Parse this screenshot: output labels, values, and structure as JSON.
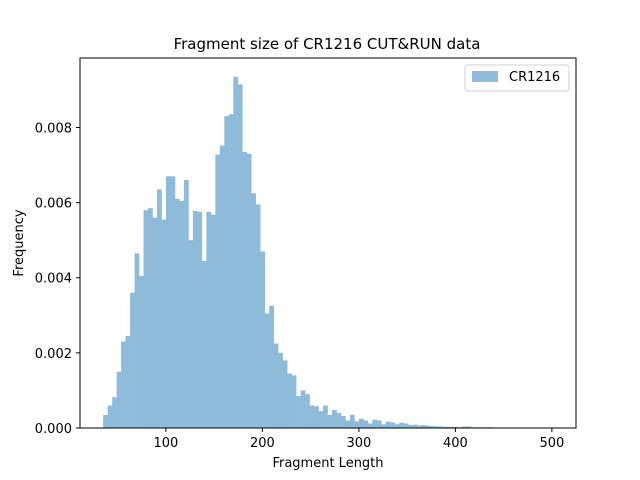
{
  "chart_data": {
    "type": "bar",
    "title": "Fragment size of CR1216 CUT&RUN data",
    "xlabel": "Fragment Length",
    "ylabel": "Frequency",
    "xlim": [
      11,
      525
    ],
    "ylim": [
      0,
      0.00985
    ],
    "xticks": [
      100,
      200,
      300,
      400,
      500
    ],
    "xtick_labels": [
      "100",
      "200",
      "300",
      "400",
      "500"
    ],
    "yticks": [
      0,
      0.002,
      0.004,
      0.006,
      0.008
    ],
    "ytick_labels": [
      "0.000",
      "0.002",
      "0.004",
      "0.006",
      "0.008"
    ],
    "grid": false,
    "legend_position": "top-right",
    "bin_start": 35,
    "bin_width": 4.65,
    "series": [
      {
        "name": "CR1216",
        "color": "#8fbbda",
        "values": [
          0.00035,
          0.0006,
          0.00082,
          0.0015,
          0.0023,
          0.00245,
          0.0036,
          0.00465,
          0.00405,
          0.0058,
          0.00585,
          0.0056,
          0.00635,
          0.00555,
          0.0067,
          0.0067,
          0.0061,
          0.00605,
          0.0066,
          0.005,
          0.00578,
          0.00575,
          0.00445,
          0.00575,
          0.00568,
          0.00728,
          0.00752,
          0.0083,
          0.00835,
          0.00935,
          0.00915,
          0.00735,
          0.0073,
          0.00625,
          0.00595,
          0.0047,
          0.00305,
          0.00325,
          0.00225,
          0.002,
          0.0018,
          0.00145,
          0.0014,
          0.00085,
          0.001,
          0.0009,
          0.0006,
          0.00058,
          0.00045,
          0.0006,
          0.00035,
          0.00048,
          0.0004,
          0.00032,
          0.0002,
          0.00035,
          0.00018,
          0.00025,
          0.0002,
          0.00012,
          0.00022,
          0.0002,
          0.0001,
          0.00017,
          0.00015,
          0.0001,
          0.00014,
          0.00012,
          8e-05,
          9e-05,
          7e-05,
          8e-05,
          6e-05,
          5e-05,
          4e-05,
          4e-05,
          3e-05,
          3e-05,
          3e-05,
          2e-05,
          4e-05,
          4e-05,
          2e-05,
          2e-05,
          2e-05,
          2e-05,
          2e-05,
          1e-05,
          1e-05,
          1e-05,
          1e-05,
          1e-05,
          1e-05,
          1e-05,
          1e-05,
          1e-05,
          1e-05,
          1e-05,
          1e-05,
          1e-05
        ]
      }
    ]
  }
}
